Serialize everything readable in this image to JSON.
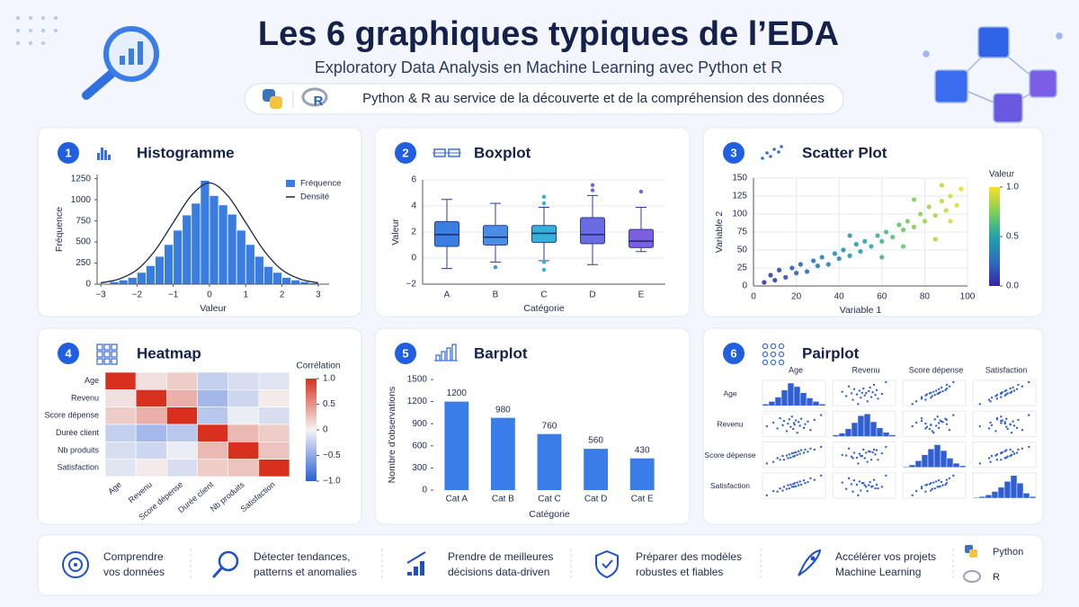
{
  "header": {
    "title": "Les 6 graphiques typiques de l’EDA",
    "subtitle": "Exploratory Data Analysis en Machine Learning avec Python et R",
    "tagline": "Python & R au service de la découverte et de la compréhension des données"
  },
  "chart_data": [
    {
      "type": "histogram",
      "badge": "1",
      "title": "Histogramme",
      "name": "Fréquence",
      "color": "#3a7de0",
      "bins": [
        -2.75,
        -2.5,
        -2.25,
        -2,
        -1.75,
        -1.5,
        -1.25,
        -1,
        -0.75,
        -0.5,
        -0.25,
        0,
        0.25,
        0.5,
        0.75,
        1,
        1.25,
        1.5,
        1.75,
        2,
        2.25,
        2.5,
        2.75,
        3
      ],
      "counts": [
        30,
        50,
        80,
        140,
        220,
        330,
        470,
        640,
        820,
        960,
        1230,
        1050,
        940,
        830,
        640,
        470,
        330,
        210,
        140,
        80,
        50,
        30,
        15
      ],
      "density": {
        "name": "Densité",
        "color": "#1a2550",
        "x": [
          -3,
          -2.5,
          -2,
          -1.5,
          -1,
          -0.5,
          0,
          0.5,
          1,
          1.5,
          2,
          2.5,
          3
        ],
        "y": [
          15,
          60,
          170,
          400,
          730,
          1050,
          1200,
          1050,
          730,
          400,
          170,
          60,
          15
        ]
      },
      "xlabel": "Valeur",
      "ylabel": "Fréquence",
      "xlim": [
        -3.1,
        3.3
      ],
      "xticks": [
        {
          "value": -3,
          "label": "−3"
        },
        {
          "value": -2,
          "label": "−2"
        },
        {
          "value": -1,
          "label": "−1"
        },
        0,
        1,
        2,
        3
      ],
      "ylim": [
        0,
        1300
      ],
      "yticks": [
        0,
        250,
        500,
        750,
        1000,
        1250
      ],
      "legend": "upper right"
    },
    {
      "type": "box",
      "badge": "2",
      "title": "Boxplot",
      "categories": [
        "A",
        "B",
        "C",
        "D",
        "E"
      ],
      "boxes": [
        {
          "whislo": -0.8,
          "q1": 0.9,
          "med": 1.8,
          "q3": 2.8,
          "whishi": 4.5,
          "fliers": [],
          "color": "#3b7de0"
        },
        {
          "whislo": -0.3,
          "q1": 1.0,
          "med": 1.6,
          "q3": 2.5,
          "whishi": 4.2,
          "fliers": [
            -0.7
          ],
          "color": "#4a8de6"
        },
        {
          "whislo": -0.2,
          "q1": 1.2,
          "med": 1.9,
          "q3": 2.5,
          "whishi": 3.9,
          "fliers": [
            4.7,
            4.2,
            -0.3,
            -0.9
          ],
          "color": "#35b0d8"
        },
        {
          "whislo": -0.5,
          "q1": 1.1,
          "med": 1.8,
          "q3": 3.1,
          "whishi": 4.8,
          "fliers": [
            5.6,
            5.2
          ],
          "color": "#6a6ae2"
        },
        {
          "whislo": 0.5,
          "q1": 0.8,
          "med": 1.3,
          "q3": 2.2,
          "whishi": 3.9,
          "fliers": [
            5.1
          ],
          "color": "#7b5fe0"
        }
      ],
      "xlabel": "Catégorie",
      "ylabel": "Valeur",
      "ylim": [
        -2,
        6
      ],
      "yticks": [
        {
          "value": -2,
          "label": "−2"
        },
        0,
        2,
        4,
        6
      ],
      "grid": true
    },
    {
      "type": "scatter",
      "badge": "3",
      "title": "Scatter Plot",
      "x": [
        5,
        8,
        10,
        12,
        15,
        18,
        20,
        22,
        25,
        28,
        30,
        32,
        35,
        38,
        40,
        42,
        45,
        48,
        50,
        52,
        55,
        58,
        60,
        62,
        65,
        68,
        70,
        72,
        75,
        78,
        80,
        82,
        85,
        88,
        90,
        92,
        95,
        97,
        88,
        70,
        60,
        45,
        85,
        75,
        92
      ],
      "y": [
        5,
        15,
        8,
        22,
        12,
        25,
        18,
        30,
        20,
        35,
        28,
        40,
        30,
        45,
        38,
        50,
        42,
        58,
        48,
        62,
        55,
        70,
        62,
        75,
        68,
        85,
        78,
        90,
        82,
        100,
        90,
        110,
        98,
        118,
        105,
        125,
        112,
        135,
        140,
        55,
        40,
        70,
        65,
        120,
        90
      ],
      "c": [
        0.05,
        0.08,
        0.1,
        0.12,
        0.15,
        0.18,
        0.2,
        0.22,
        0.25,
        0.28,
        0.3,
        0.32,
        0.35,
        0.38,
        0.4,
        0.42,
        0.45,
        0.48,
        0.5,
        0.52,
        0.55,
        0.58,
        0.6,
        0.62,
        0.65,
        0.68,
        0.7,
        0.72,
        0.75,
        0.78,
        0.8,
        0.82,
        0.85,
        0.88,
        0.9,
        0.92,
        0.95,
        0.97,
        0.88,
        0.7,
        0.6,
        0.45,
        0.85,
        0.75,
        0.92
      ],
      "colormap": [
        "#3b22a8",
        "#2c6fc0",
        "#22a3a8",
        "#7fd05a",
        "#f7e02a"
      ],
      "colorbar_label": "Valeur",
      "clim": [
        0,
        1
      ],
      "cticks": [
        {
          "value": 0,
          "label": "0.0"
        },
        0.5,
        {
          "value": 1,
          "label": "1.0"
        }
      ],
      "xlabel": "Variable 1",
      "ylabel": "Variable 2",
      "xlim": [
        0,
        100
      ],
      "xticks": [
        0,
        20,
        40,
        60,
        80,
        100
      ],
      "ylim": [
        0,
        150
      ],
      "yticks": [
        0,
        25,
        50,
        75,
        100,
        125,
        150
      ],
      "grid": true
    },
    {
      "type": "heatmap",
      "badge": "4",
      "title": "Heatmap",
      "labels": [
        "Age",
        "Revenu",
        "Score dépense",
        "Durée client",
        "Nb produits",
        "Satisfaction"
      ],
      "matrix": [
        [
          1,
          0.1,
          0.2,
          -0.25,
          -0.15,
          -0.1
        ],
        [
          0.1,
          1,
          0.35,
          -0.4,
          -0.2,
          0.05
        ],
        [
          0.2,
          0.35,
          1,
          -0.3,
          -0.05,
          -0.15
        ],
        [
          -0.25,
          -0.4,
          -0.3,
          1,
          0.3,
          0.2
        ],
        [
          -0.15,
          -0.2,
          -0.05,
          0.3,
          1,
          0.25
        ],
        [
          -0.1,
          0.05,
          -0.15,
          0.2,
          0.25,
          1
        ]
      ],
      "colormap": [
        "#2b5fd8",
        "#f4f4f4",
        "#d7301f"
      ],
      "colorbar_label": "Corrélation",
      "clim": [
        -1,
        1
      ],
      "cticks": [
        {
          "value": 1,
          "label": "1.0"
        },
        0.5,
        0,
        {
          "value": -0.5,
          "label": "−0.5"
        },
        {
          "value": -1,
          "label": "−1.0"
        }
      ]
    },
    {
      "type": "bar",
      "badge": "5",
      "title": "Barplot",
      "categories": [
        "Cat A",
        "Cat B",
        "Cat C",
        "Cat D",
        "Cat E"
      ],
      "values": [
        1200,
        980,
        760,
        560,
        430
      ],
      "color": "#3b7de8",
      "xlabel": "Catégorie",
      "ylabel": "Nombre d'observations",
      "ylim": [
        0,
        1500
      ],
      "yticks": [
        0,
        300,
        600,
        900,
        1200,
        1500
      ]
    },
    {
      "type": "pairplot",
      "badge": "6",
      "title": "Pairplot",
      "color": "#2f5fd0",
      "variables": [
        "Age",
        "Revenu",
        "Score dépense",
        "Satisfaction"
      ],
      "samples": [
        [
          -1.5,
          -1.2,
          -1.0,
          -0.8,
          -0.7,
          -0.5,
          -0.4,
          -0.3,
          -0.2,
          -0.1,
          0,
          0.05,
          0.1,
          0.2,
          0.3,
          0.4,
          0.5,
          0.6,
          0.8,
          0.9,
          1.1,
          1.3,
          1.6,
          -2.0,
          2.1
        ],
        [
          0.3,
          -0.8,
          1.1,
          -0.2,
          0.6,
          -1.3,
          0.1,
          0.9,
          -0.5,
          1.4,
          -0.9,
          0.2,
          -0.1,
          0.7,
          -1.6,
          0.4,
          -0.3,
          1.0,
          -0.7,
          0.0,
          0.5,
          -1.1,
          0.8,
          -0.4,
          1.7
        ],
        [
          -1.3,
          -0.6,
          -0.9,
          -0.2,
          -0.9,
          -0.1,
          -0.6,
          0.1,
          -0.5,
          0.3,
          -0.3,
          0.4,
          -0.2,
          0.5,
          0.0,
          0.7,
          0.2,
          0.9,
          0.4,
          1.0,
          0.6,
          1.2,
          1.0,
          -1.6,
          1.5
        ],
        [
          -1.0,
          -1.1,
          -0.5,
          -0.9,
          -0.2,
          -0.6,
          0.1,
          -0.5,
          0.2,
          -0.2,
          0.3,
          -0.2,
          0.5,
          -0.1,
          0.6,
          0.1,
          0.8,
          0.2,
          1.0,
          0.5,
          0.7,
          1.4,
          1.1,
          -1.8,
          1.9
        ]
      ],
      "hist": [
        [
          2,
          5,
          10,
          18,
          26,
          22,
          15,
          9,
          5,
          2
        ],
        [
          2,
          4,
          9,
          16,
          24,
          26,
          17,
          10,
          5,
          2
        ],
        [
          1,
          3,
          8,
          15,
          22,
          27,
          20,
          11,
          5,
          2
        ],
        [
          1,
          2,
          4,
          8,
          13,
          20,
          27,
          18,
          6,
          2
        ]
      ]
    }
  ],
  "footer": {
    "items": [
      {
        "lines": [
          "Comprendre",
          "vos données"
        ]
      },
      {
        "lines": [
          "Détecter tendances,",
          "patterns et anomalies"
        ]
      },
      {
        "lines": [
          "Prendre de meilleures",
          "décisions data-driven"
        ]
      },
      {
        "lines": [
          "Préparer des modèles",
          "robustes et fiables"
        ]
      },
      {
        "lines": [
          "Accélérer vos projets",
          "Machine Learning"
        ]
      }
    ],
    "languages": [
      "Python",
      "R"
    ]
  }
}
